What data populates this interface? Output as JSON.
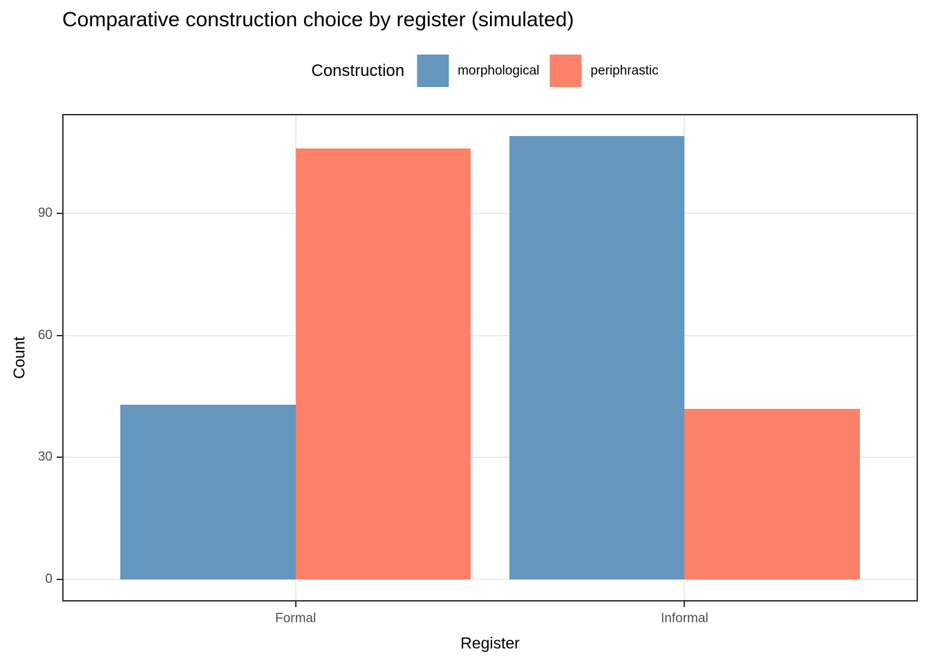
{
  "chart_data": {
    "type": "bar",
    "title": "Comparative construction choice by register (simulated)",
    "xlabel": "Register",
    "ylabel": "Count",
    "categories": [
      "Formal",
      "Informal"
    ],
    "series": [
      {
        "name": "morphological",
        "color": "#6596BE",
        "values": [
          43,
          109
        ]
      },
      {
        "name": "periphrastic",
        "color": "#FB8268",
        "values": [
          106,
          42
        ]
      }
    ],
    "legend": {
      "title": "Construction",
      "position": "top"
    },
    "yticks": [
      0,
      30,
      60,
      90
    ],
    "ylim": [
      -5.45,
      114.45
    ],
    "xlim": [
      0.4,
      2.6
    ],
    "bar_width": 0.45,
    "grid": "major-only",
    "colors": {
      "gridline": "#ebebeb",
      "panel_border": "#333333",
      "tick_mark": "#333333",
      "tick_label": "#4d4d4d",
      "title_text": "#000000"
    }
  }
}
